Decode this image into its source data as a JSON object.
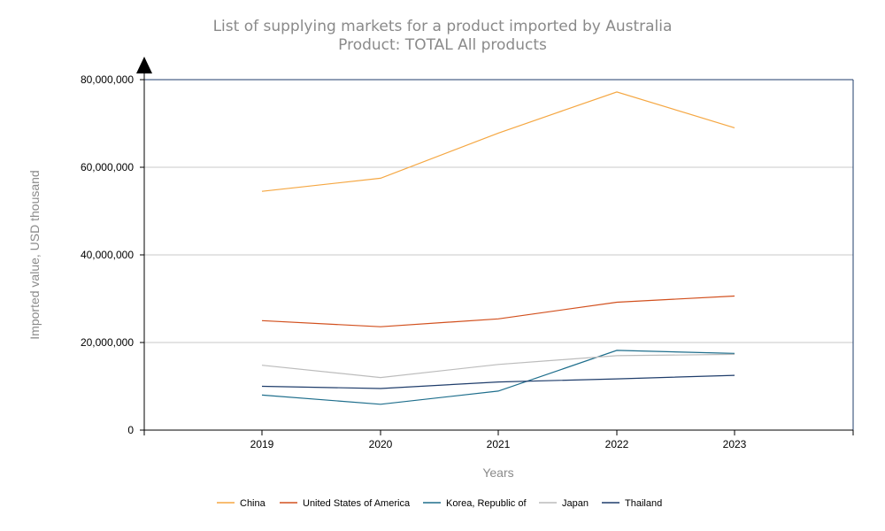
{
  "chart_data": {
    "type": "line",
    "title": "List of supplying markets for a product imported by Australia",
    "subtitle": "Product: TOTAL All products",
    "xlabel": "Years",
    "ylabel": "Imported value, USD thousand",
    "x": [
      "2019",
      "2020",
      "2021",
      "2022",
      "2023"
    ],
    "ylim": [
      0,
      80000000
    ],
    "yticks": [
      0,
      20000000,
      40000000,
      60000000,
      80000000
    ],
    "ytick_labels": [
      "0",
      "20,000,000",
      "40,000,000",
      "60,000,000",
      "80,000,000"
    ],
    "grid": "horizontal",
    "legend_position": "bottom",
    "series": [
      {
        "name": "China",
        "color": "#f5a742",
        "values": [
          54500000,
          57500000,
          67800000,
          77200000,
          69000000
        ]
      },
      {
        "name": "United States of America",
        "color": "#d2501e",
        "values": [
          25000000,
          23600000,
          25400000,
          29200000,
          30600000
        ]
      },
      {
        "name": "Korea, Republic of",
        "color": "#1e6e8c",
        "values": [
          8000000,
          5900000,
          8900000,
          18200000,
          17500000
        ]
      },
      {
        "name": "Japan",
        "color": "#bcbcbc",
        "values": [
          14800000,
          12000000,
          15000000,
          17000000,
          17300000
        ]
      },
      {
        "name": "Thailand",
        "color": "#1f3d6b",
        "values": [
          10000000,
          9500000,
          11000000,
          11700000,
          12500000
        ]
      }
    ]
  }
}
